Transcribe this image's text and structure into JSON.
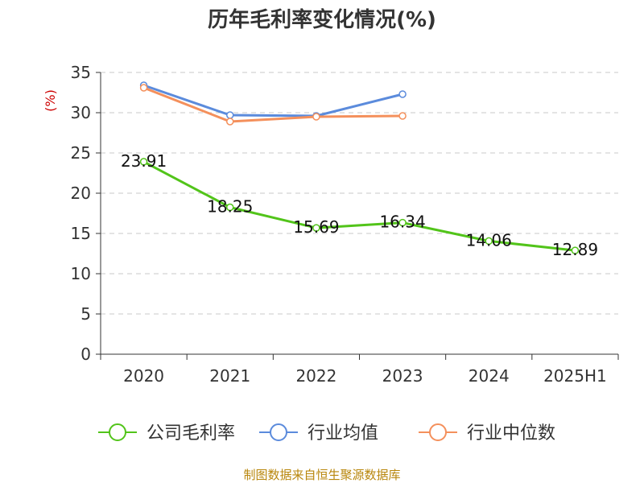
{
  "chart_data": {
    "type": "line",
    "title": "历年毛利率变化情况(%)",
    "ylabel": "(%)",
    "categories": [
      "2020",
      "2021",
      "2022",
      "2023",
      "2024",
      "2025H1"
    ],
    "ylim": [
      0,
      35
    ],
    "yticks": [
      0,
      5,
      10,
      15,
      20,
      25,
      30,
      35
    ],
    "grid": true,
    "legend_position": "bottom",
    "series": [
      {
        "name": "公司毛利率",
        "color": "#52c41a",
        "values": [
          23.91,
          18.25,
          15.69,
          16.34,
          14.06,
          12.89
        ],
        "labels": [
          "23.91",
          "18.25",
          "15.69",
          "16.34",
          "14.06",
          "12.89"
        ]
      },
      {
        "name": "行业均值",
        "color": "#5b8bdc",
        "values": [
          33.4,
          29.7,
          29.6,
          32.3,
          null,
          null
        ]
      },
      {
        "name": "行业中位数",
        "color": "#f4905c",
        "values": [
          33.1,
          28.9,
          29.5,
          29.6,
          null,
          null
        ]
      }
    ],
    "source": "制图数据来自恒生聚源数据库"
  }
}
